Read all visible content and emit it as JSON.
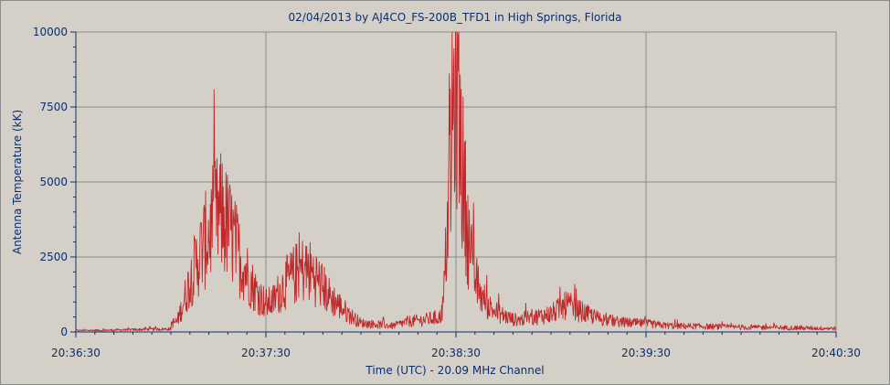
{
  "chart_data": {
    "type": "line",
    "title": "02/04/2013  by  AJ4CO_FS-200B_TFD1  in  High Springs, Florida",
    "xlabel": "Time (UTC) - 20.09 MHz Channel",
    "ylabel": "Antenna Temperature (kK)",
    "ylim": [
      0,
      10000
    ],
    "yticks": [
      0,
      2500,
      5000,
      7500,
      10000
    ],
    "yticklabels": [
      "0",
      "2500",
      "5000",
      "7500",
      "10000"
    ],
    "xticklabels": [
      "20:36:30",
      "20:37:30",
      "20:38:30",
      "20:39:30",
      "20:40:30"
    ],
    "grid": true,
    "series_color": "#c0282a",
    "series": [
      {
        "t": [
          0,
          10,
          20,
          30,
          25,
          32,
          34,
          36,
          38,
          40,
          42,
          44,
          46,
          48,
          50,
          52,
          54,
          56,
          58,
          60,
          62,
          64,
          66,
          68,
          70,
          72,
          74,
          76,
          78,
          80,
          82,
          84,
          86,
          88,
          90,
          95,
          100,
          105,
          110,
          115,
          116,
          118,
          120,
          122,
          124,
          126,
          128,
          130,
          132,
          134,
          136,
          138,
          140,
          142,
          145,
          150,
          155,
          160,
          165,
          170,
          175,
          180,
          185,
          190,
          200,
          210,
          220,
          230,
          240
        ],
        "values": [
          50,
          60,
          80,
          100,
          120,
          350,
          1000,
          1700,
          2300,
          2800,
          3300,
          3800,
          3900,
          3500,
          3000,
          2400,
          2000,
          1500,
          1200,
          950,
          1000,
          1300,
          1600,
          1800,
          2000,
          2100,
          2000,
          1800,
          1500,
          1200,
          1000,
          800,
          600,
          450,
          300,
          250,
          200,
          350,
          400,
          500,
          900,
          5000,
          9200,
          5500,
          3000,
          1800,
          1200,
          900,
          700,
          600,
          500,
          420,
          400,
          450,
          500,
          600,
          900,
          650,
          450,
          350,
          300,
          280,
          220,
          200,
          180,
          150,
          150,
          130,
          120
        ]
      }
    ]
  }
}
